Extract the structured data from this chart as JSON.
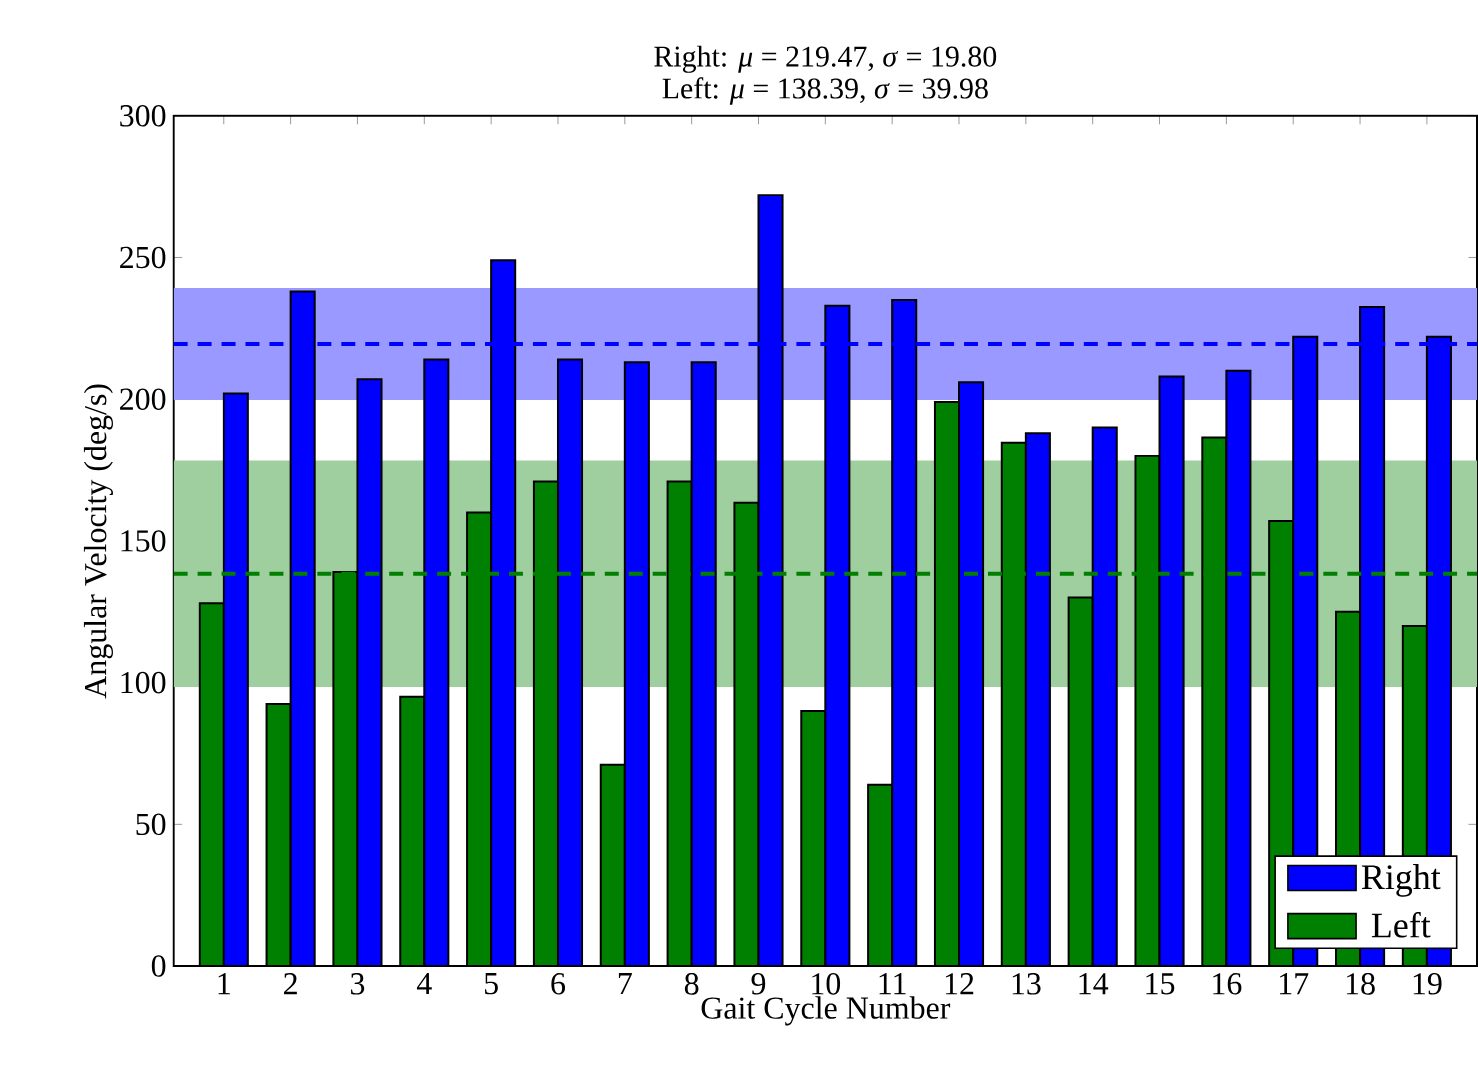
{
  "chart_data": {
    "type": "bar",
    "title": "Right: *μ* = 219.47, *σ* = 19.80",
    "subtitle": "Left: *μ* = 138.39, *σ* = 39.98",
    "xlabel": "Gait Cycle Number",
    "ylabel": "Angular Velocity (deg/s)",
    "categories": [
      "1",
      "2",
      "3",
      "4",
      "5",
      "6",
      "7",
      "8",
      "9",
      "10",
      "11",
      "12",
      "13",
      "14",
      "15",
      "16",
      "17",
      "18",
      "19"
    ],
    "series": [
      {
        "name": "Left",
        "color": "#008000",
        "values": [
          128,
          92.5,
          139,
          95,
          160,
          171,
          71,
          171,
          163.5,
          90,
          64,
          199,
          184.6,
          130,
          180,
          186.5,
          157,
          125,
          120
        ]
      },
      {
        "name": "Right",
        "color": "#0000ff",
        "values": [
          202,
          238,
          207,
          214,
          249,
          214,
          213,
          213,
          272,
          233,
          235,
          206,
          188,
          190,
          208,
          210,
          222,
          232.5,
          222
        ]
      }
    ],
    "ylim": [
      0,
      300
    ],
    "yticks": [
      0,
      50,
      100,
      150,
      200,
      250,
      300
    ],
    "ref_lines": [
      {
        "axis": "y",
        "value": 219.47,
        "color": "#0000ff",
        "line_style": "dashed"
      },
      {
        "axis": "y",
        "value": 138.39,
        "color": "#007f00",
        "line_style": "dashed"
      }
    ],
    "bands": [
      {
        "axis": "y",
        "from": 199.67,
        "to": 239.27,
        "color": "#9999ff"
      },
      {
        "axis": "y",
        "from": 98.41,
        "to": 178.37,
        "color": "#9fcf9f"
      }
    ],
    "legend": "bottom right",
    "grid": false
  }
}
